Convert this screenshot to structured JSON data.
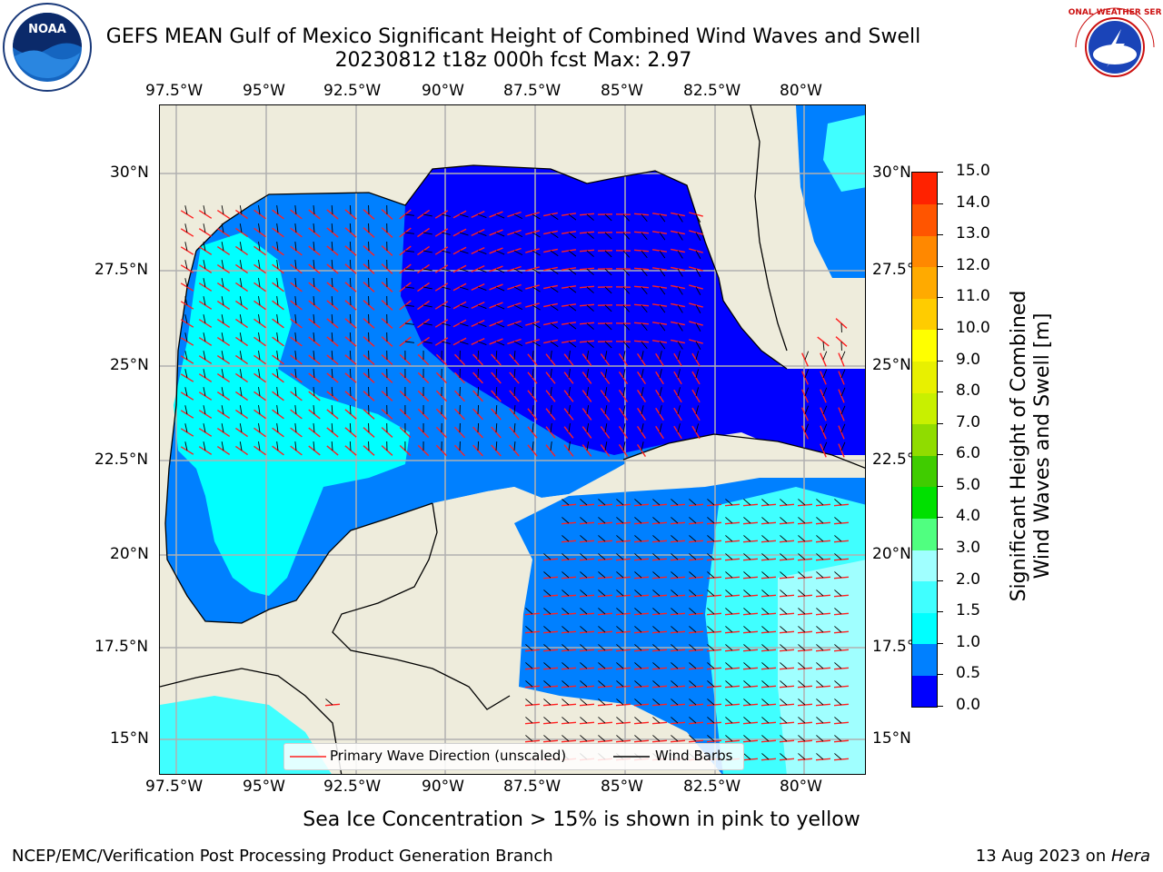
{
  "header": {
    "title_line1": "GEFS MEAN Gulf of Mexico Significant Height of Combined Wind Waves and Swell",
    "title_line2": "20230812 t18z 000h fcst   Max: 2.97"
  },
  "logos": {
    "left": "NOAA",
    "right": "NATIONAL WEATHER SERVICE"
  },
  "axes": {
    "lon_labels": [
      "97.5°W",
      "95°W",
      "92.5°W",
      "90°W",
      "87.5°W",
      "85°W",
      "82.5°W",
      "80°W"
    ],
    "lat_labels": [
      "30°N",
      "27.5°N",
      "25°N",
      "22.5°N",
      "20°N",
      "17.5°N",
      "15°N"
    ]
  },
  "colorbar": {
    "label": "Significant Height of Combined Wind Waves and Swell [m]",
    "label_line1": "Significant Height of Combined",
    "label_line2": "Wind Waves and Swell [m]",
    "ticks": [
      "15.0",
      "14.0",
      "13.0",
      "12.0",
      "11.0",
      "10.0",
      "9.0",
      "8.0",
      "7.0",
      "6.0",
      "5.0",
      "4.0",
      "3.0",
      "2.0",
      "1.5",
      "1.0",
      "0.5",
      "0.0"
    ],
    "colors": [
      "#0000ff",
      "#0080ff",
      "#00ffff",
      "#40ffff",
      "#a0ffff",
      "#50ff80",
      "#00e000",
      "#40cc00",
      "#90dc00",
      "#c8f000",
      "#e8f000",
      "#ffff00",
      "#ffcc00",
      "#ffaa00",
      "#ff8800",
      "#ff5500",
      "#ff2200"
    ],
    "land_color": "#eeecdc"
  },
  "legend": {
    "wave_direction": "Primary Wave Direction (unscaled)",
    "wind_barbs": "Wind Barbs"
  },
  "footer": {
    "sea_ice_note": "Sea Ice Concentration > 15% is shown in pink to yellow",
    "credit": "NCEP/EMC/Verification Post Processing Product Generation Branch",
    "date_prefix": "13 Aug 2023 on ",
    "machine": "Hera"
  }
}
